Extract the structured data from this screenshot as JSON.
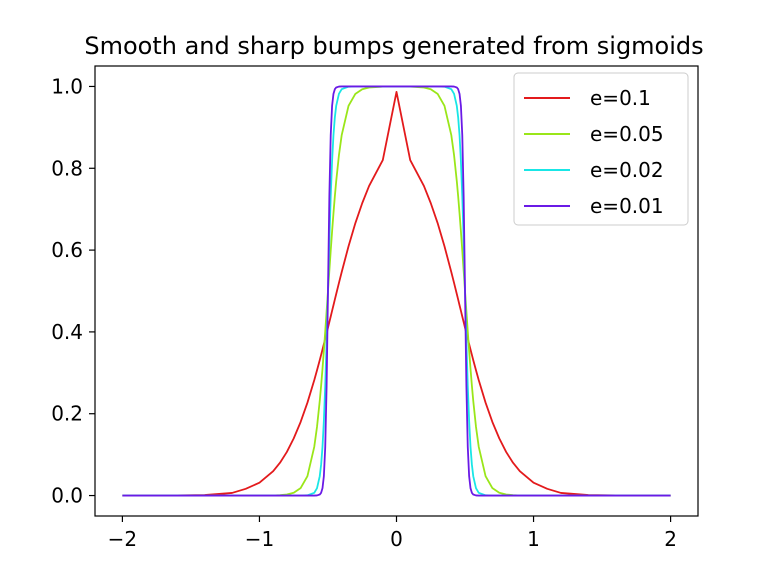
{
  "chart_data": {
    "type": "line",
    "title": "Smooth and sharp bumps generated from sigmoids",
    "xlabel": "",
    "ylabel": "",
    "xlim": [
      -2.2,
      2.2
    ],
    "ylim": [
      -0.05,
      1.05
    ],
    "xticks": [
      -2,
      -1,
      0,
      1,
      2
    ],
    "xtick_labels": [
      "−2",
      "−1",
      "0",
      "1",
      "2"
    ],
    "yticks": [
      0.0,
      0.2,
      0.4,
      0.6,
      0.8,
      1.0
    ],
    "ytick_labels": [
      "0.0",
      "0.2",
      "0.4",
      "0.6",
      "0.8",
      "1.0"
    ],
    "grid": false,
    "legend_position": "top-right",
    "x": [
      -2.0,
      -1.8,
      -1.6,
      -1.4,
      -1.2,
      -1.1,
      -1.0,
      -0.9,
      -0.85,
      -0.8,
      -0.75,
      -0.7,
      -0.65,
      -0.6,
      -0.58,
      -0.56,
      -0.55,
      -0.54,
      -0.53,
      -0.52,
      -0.51,
      -0.5,
      -0.49,
      -0.48,
      -0.47,
      -0.46,
      -0.45,
      -0.44,
      -0.42,
      -0.4,
      -0.35,
      -0.3,
      -0.25,
      -0.2,
      -0.1,
      0.0,
      0.1,
      0.2,
      0.25,
      0.3,
      0.35,
      0.4,
      0.42,
      0.44,
      0.45,
      0.46,
      0.47,
      0.48,
      0.49,
      0.5,
      0.51,
      0.52,
      0.53,
      0.54,
      0.55,
      0.56,
      0.58,
      0.6,
      0.65,
      0.7,
      0.75,
      0.8,
      0.85,
      0.9,
      1.0,
      1.1,
      1.2,
      1.4,
      1.6,
      1.8,
      2.0
    ],
    "series": [
      {
        "name": "e=0.1",
        "color": "#e31a1c",
        "values": [
          0.0,
          0.0,
          0.0003,
          0.0012,
          0.0064,
          0.0165,
          0.0314,
          0.0596,
          0.0802,
          0.1066,
          0.1397,
          0.1795,
          0.227,
          0.2822,
          0.3062,
          0.3311,
          0.344,
          0.357,
          0.3701,
          0.3835,
          0.3969,
          0.4105,
          0.4241,
          0.4377,
          0.4515,
          0.4652,
          0.479,
          0.4927,
          0.5197,
          0.5461,
          0.6094,
          0.6661,
          0.7148,
          0.7569,
          0.82,
          0.9866,
          0.82,
          0.7569,
          0.7148,
          0.6661,
          0.6094,
          0.5461,
          0.5197,
          0.4927,
          0.479,
          0.4652,
          0.4515,
          0.4377,
          0.4241,
          0.4105,
          0.3969,
          0.3835,
          0.3701,
          0.357,
          0.344,
          0.3311,
          0.3062,
          0.2822,
          0.227,
          0.1795,
          0.1397,
          0.1066,
          0.0802,
          0.0596,
          0.0314,
          0.0165,
          0.0064,
          0.0012,
          0.0003,
          0.0,
          0.0
        ]
      },
      {
        "name": "e=0.05",
        "color": "#9ae619",
        "values": [
          0.0,
          0.0,
          0.0,
          0.0,
          0.0,
          0.0,
          0.0,
          0.0001,
          0.0009,
          0.0025,
          0.0067,
          0.018,
          0.0474,
          0.1192,
          0.168,
          0.2315,
          0.2689,
          0.31,
          0.3543,
          0.4013,
          0.4502,
          0.5,
          0.5498,
          0.5987,
          0.6457,
          0.69,
          0.7311,
          0.7685,
          0.832,
          0.8808,
          0.9526,
          0.982,
          0.9933,
          0.9975,
          0.9996,
          0.9999,
          0.9996,
          0.9975,
          0.9933,
          0.982,
          0.9526,
          0.8808,
          0.832,
          0.7685,
          0.7311,
          0.69,
          0.6457,
          0.5987,
          0.5498,
          0.5,
          0.4502,
          0.4013,
          0.3543,
          0.31,
          0.2689,
          0.2315,
          0.168,
          0.1192,
          0.0474,
          0.018,
          0.0067,
          0.0025,
          0.0009,
          0.0001,
          0.0,
          0.0,
          0.0,
          0.0,
          0.0,
          0.0,
          0.0
        ]
      },
      {
        "name": "e=0.02",
        "color": "#19e6e6",
        "values": [
          0.0,
          0.0,
          0.0,
          0.0,
          0.0,
          0.0,
          0.0,
          0.0,
          0.0,
          0.0,
          0.0,
          0.0,
          0.0006,
          0.0067,
          0.018,
          0.0474,
          0.0759,
          0.1192,
          0.1824,
          0.2689,
          0.3775,
          0.5,
          0.6225,
          0.7311,
          0.8176,
          0.8808,
          0.9241,
          0.9526,
          0.982,
          0.9933,
          0.9994,
          1.0,
          1.0,
          1.0,
          1.0,
          1.0,
          1.0,
          1.0,
          1.0,
          1.0,
          0.9994,
          0.9933,
          0.982,
          0.9526,
          0.9241,
          0.8808,
          0.8176,
          0.7311,
          0.6225,
          0.5,
          0.3775,
          0.2689,
          0.1824,
          0.1192,
          0.0759,
          0.0474,
          0.018,
          0.0067,
          0.0006,
          0.0,
          0.0,
          0.0,
          0.0,
          0.0,
          0.0,
          0.0,
          0.0,
          0.0,
          0.0,
          0.0,
          0.0
        ]
      },
      {
        "name": "e=0.01",
        "color": "#6a1ae6",
        "values": [
          0.0,
          0.0,
          0.0,
          0.0,
          0.0,
          0.0,
          0.0,
          0.0,
          0.0,
          0.0,
          0.0,
          0.0,
          0.0,
          0.0,
          0.0003,
          0.0025,
          0.0067,
          0.018,
          0.0474,
          0.1192,
          0.2689,
          0.5,
          0.7311,
          0.8808,
          0.9526,
          0.982,
          0.9933,
          0.9975,
          0.9997,
          1.0,
          1.0,
          1.0,
          1.0,
          1.0,
          1.0,
          1.0,
          1.0,
          1.0,
          1.0,
          1.0,
          1.0,
          1.0,
          0.9997,
          0.9975,
          0.9933,
          0.982,
          0.9526,
          0.8808,
          0.7311,
          0.5,
          0.2689,
          0.1192,
          0.0474,
          0.018,
          0.0067,
          0.0025,
          0.0003,
          0.0,
          0.0,
          0.0,
          0.0,
          0.0,
          0.0,
          0.0,
          0.0,
          0.0,
          0.0,
          0.0,
          0.0,
          0.0,
          0.0
        ]
      }
    ]
  }
}
